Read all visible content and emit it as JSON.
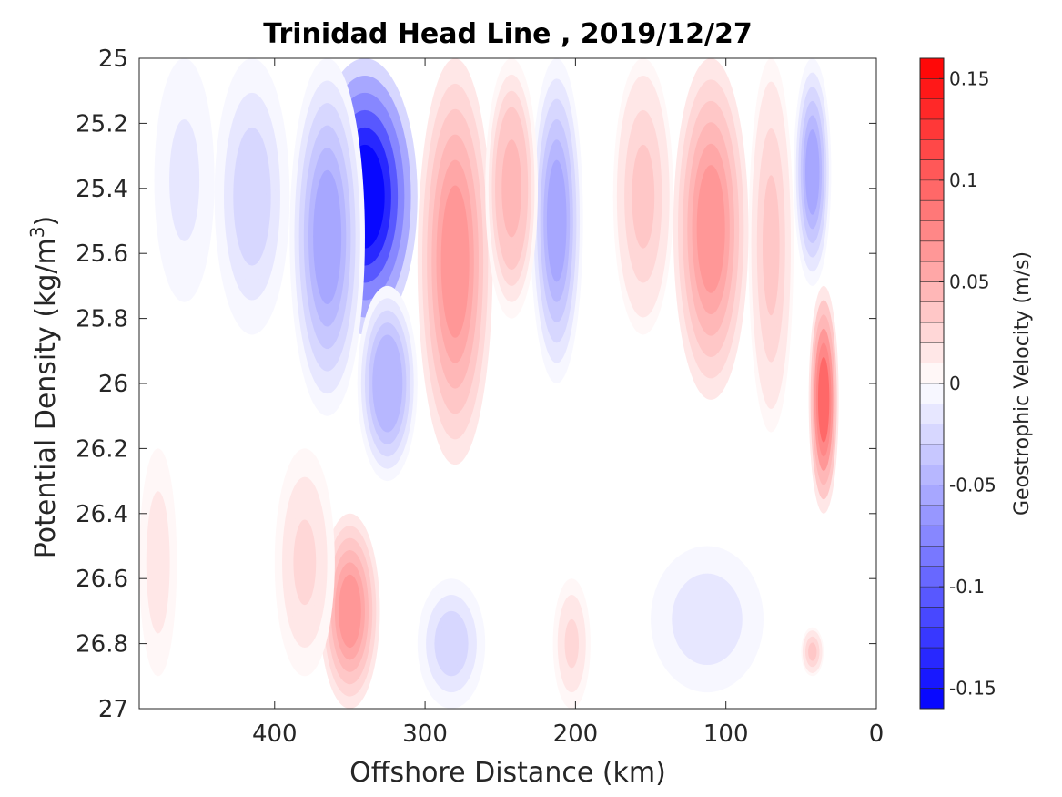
{
  "chart_data": {
    "type": "heatmap",
    "subtype": "filled-contour",
    "title": "Trinidad Head Line , 2019/12/27",
    "xlabel": "Offshore Distance (km)",
    "ylabel_main": "Potential Density (kg/m",
    "ylabel_sup": "3",
    "ylabel_close": ")",
    "x_reversed": true,
    "xlim": [
      0,
      490
    ],
    "x_ticks": [
      400,
      300,
      200,
      100,
      0
    ],
    "x_tick_labels": [
      "400",
      "300",
      "200",
      "100",
      "0"
    ],
    "ylim": [
      25,
      27
    ],
    "y_reversed": true,
    "y_ticks": [
      25,
      25.2,
      25.4,
      25.6,
      25.8,
      26,
      26.2,
      26.4,
      26.6,
      26.8,
      27
    ],
    "y_tick_labels": [
      "25",
      "25.2",
      "25.4",
      "25.6",
      "25.8",
      "26",
      "26.2",
      "26.4",
      "26.6",
      "26.8",
      "27"
    ],
    "colorbar": {
      "label": "Geostrophic Velocity (m/s)",
      "range": [
        -0.16,
        0.16
      ],
      "levels": 32,
      "colormap": "blue-white-red",
      "color_min": "#0000ff",
      "color_mid": "#ffffff",
      "color_max": "#ff0000",
      "ticks": [
        0.15,
        0.1,
        0.05,
        0,
        -0.05,
        -0.1,
        -0.15
      ],
      "tick_labels": [
        "0.15",
        "0.1",
        "0.05",
        "0",
        "-0.05",
        "-0.1",
        "-0.15"
      ]
    },
    "features": [
      {
        "x": [
          305,
          375
        ],
        "y": [
          25,
          25.85
        ],
        "v": -0.16
      },
      {
        "x": [
          340,
          390
        ],
        "y": [
          25,
          26.1
        ],
        "v": -0.06
      },
      {
        "x": [
          305,
          345
        ],
        "y": [
          25.7,
          26.3
        ],
        "v": -0.05
      },
      {
        "x": [
          390,
          440
        ],
        "y": [
          25,
          25.85
        ],
        "v": -0.03
      },
      {
        "x": [
          440,
          480
        ],
        "y": [
          25,
          25.75
        ],
        "v": -0.015
      },
      {
        "x": [
          195,
          230
        ],
        "y": [
          25,
          26.0
        ],
        "v": -0.06
      },
      {
        "x": [
          30,
          55
        ],
        "y": [
          25,
          25.7
        ],
        "v": -0.06
      },
      {
        "x": [
          255,
          305
        ],
        "y": [
          25,
          26.25
        ],
        "v": 0.065
      },
      {
        "x": [
          225,
          260
        ],
        "y": [
          25,
          25.8
        ],
        "v": 0.045
      },
      {
        "x": [
          85,
          135
        ],
        "y": [
          25,
          26.05
        ],
        "v": 0.06
      },
      {
        "x": [
          55,
          85
        ],
        "y": [
          25,
          26.15
        ],
        "v": 0.035
      },
      {
        "x": [
          135,
          175
        ],
        "y": [
          25,
          25.85
        ],
        "v": 0.03
      },
      {
        "x": [
          25,
          45
        ],
        "y": [
          25.7,
          26.4
        ],
        "v": 0.09
      },
      {
        "x": [
          330,
          370
        ],
        "y": [
          26.4,
          27
        ],
        "v": 0.065
      },
      {
        "x": [
          360,
          400
        ],
        "y": [
          26.2,
          26.9
        ],
        "v": 0.02
      },
      {
        "x": [
          465,
          490
        ],
        "y": [
          26.2,
          26.9
        ],
        "v": 0.015
      },
      {
        "x": [
          190,
          215
        ],
        "y": [
          26.6,
          27
        ],
        "v": 0.02
      },
      {
        "x": [
          260,
          305
        ],
        "y": [
          26.6,
          27
        ],
        "v": -0.03
      },
      {
        "x": [
          75,
          150
        ],
        "y": [
          26.5,
          26.95
        ],
        "v": -0.02
      },
      {
        "x": [
          35,
          50
        ],
        "y": [
          26.75,
          26.9
        ],
        "v": 0.03
      }
    ]
  }
}
